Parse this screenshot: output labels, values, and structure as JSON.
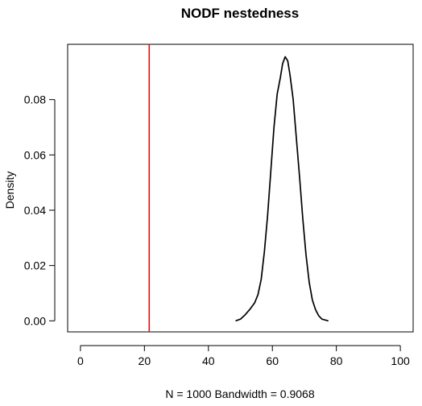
{
  "chart_data": {
    "type": "line",
    "title": "NODF nestedness",
    "xlabel": "N = 1000   Bandwidth = 0.9068",
    "ylabel": "Density",
    "xlim": [
      -4,
      104
    ],
    "ylim": [
      -0.004,
      0.1
    ],
    "x_ticks": [
      0,
      20,
      40,
      60,
      80,
      100
    ],
    "x_tick_labels": [
      "0",
      "20",
      "40",
      "60",
      "80",
      "100"
    ],
    "y_ticks": [
      0,
      0.02,
      0.04,
      0.06,
      0.08
    ],
    "y_tick_labels": [
      "0.00",
      "0.02",
      "0.04",
      "0.06",
      "0.08"
    ],
    "grid": false,
    "series": [
      {
        "color": "#000000",
        "points": [
          [
            48.5,
            0.0
          ],
          [
            50.0,
            0.0006
          ],
          [
            51.5,
            0.0022
          ],
          [
            53.0,
            0.0042
          ],
          [
            54.5,
            0.0066
          ],
          [
            55.5,
            0.0095
          ],
          [
            56.5,
            0.015
          ],
          [
            57.5,
            0.025
          ],
          [
            58.5,
            0.038
          ],
          [
            59.5,
            0.054
          ],
          [
            60.5,
            0.07
          ],
          [
            61.5,
            0.082
          ],
          [
            62.5,
            0.088
          ],
          [
            63.2,
            0.093
          ],
          [
            64.0,
            0.0955
          ],
          [
            64.8,
            0.094
          ],
          [
            65.5,
            0.089
          ],
          [
            66.5,
            0.08
          ],
          [
            67.5,
            0.066
          ],
          [
            68.5,
            0.052
          ],
          [
            69.5,
            0.037
          ],
          [
            70.5,
            0.024
          ],
          [
            71.5,
            0.014
          ],
          [
            72.5,
            0.0075
          ],
          [
            73.5,
            0.004
          ],
          [
            74.5,
            0.0018
          ],
          [
            75.5,
            0.0006
          ],
          [
            77.5,
            0.0
          ]
        ]
      }
    ],
    "reference_line": {
      "x": 21.5,
      "color": "#ff0000"
    }
  }
}
